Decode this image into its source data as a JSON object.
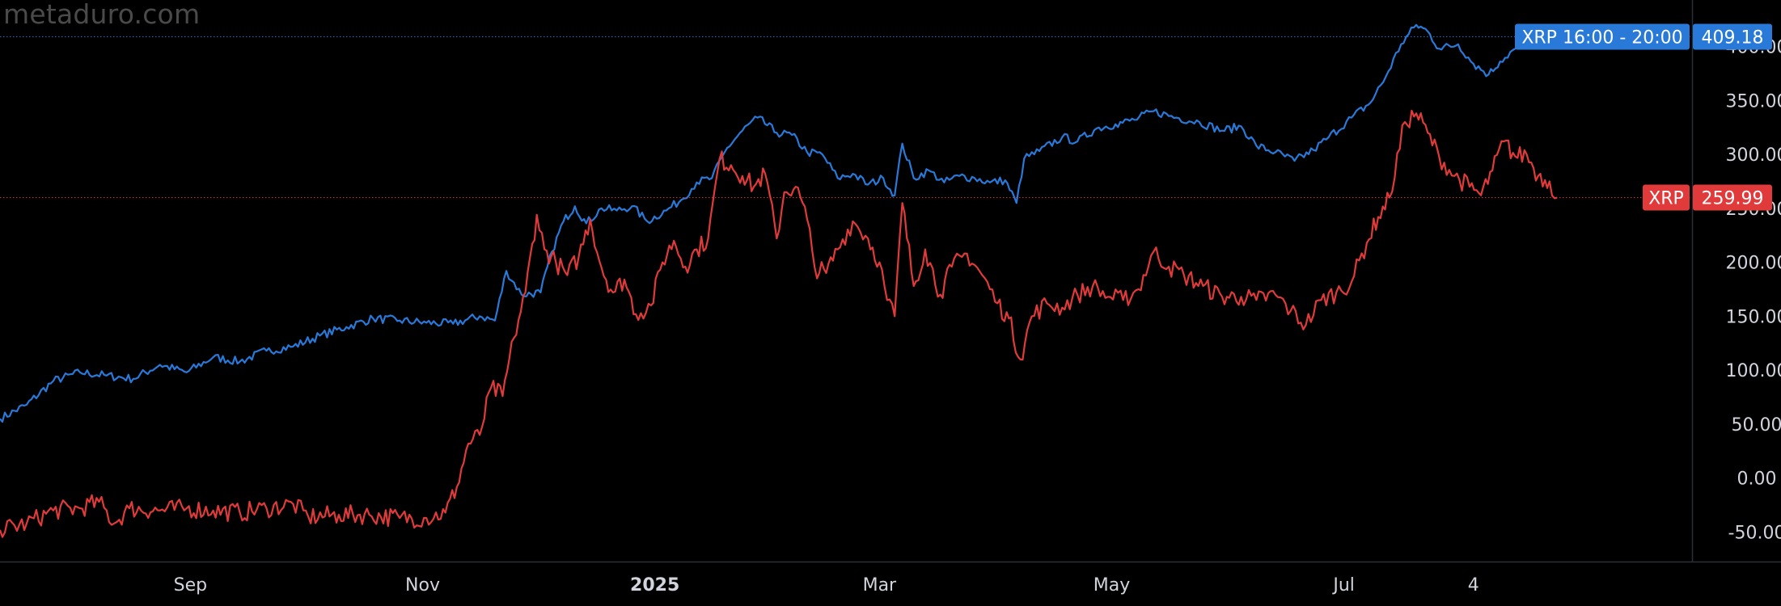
{
  "watermark": "metaduro.com",
  "chart_data": {
    "type": "line",
    "title": "",
    "xlabel": "",
    "ylabel": "",
    "ylim": [
      -70,
      460
    ],
    "x_range": [
      "2024-07-13",
      "2025-09-30"
    ],
    "y_ticks": [
      "-50.00",
      "0.00",
      "50.00",
      "100.00",
      "150.00",
      "200.00",
      "250.00",
      "300.00",
      "350.00",
      "400.00"
    ],
    "x_ticks": [
      {
        "label": "Sep",
        "date": "2024-09-01",
        "bold": false
      },
      {
        "label": "Nov",
        "date": "2024-11-01",
        "bold": false
      },
      {
        "label": "2025",
        "date": "2025-01-01",
        "bold": true
      },
      {
        "label": "Mar",
        "date": "2025-03-01",
        "bold": false
      },
      {
        "label": "May",
        "date": "2025-05-01",
        "bold": false
      },
      {
        "label": "Jul",
        "date": "2025-07-01",
        "bold": false
      },
      {
        "label": "4",
        "date": "2025-08-04",
        "bold": false
      }
    ],
    "series": [
      {
        "name": "XRP 16:00 - 20:00",
        "color": "#2979d9",
        "last_value": "409.18",
        "points": [
          [
            "2024-07-13",
            55
          ],
          [
            "2024-07-20",
            68
          ],
          [
            "2024-07-27",
            90
          ],
          [
            "2024-08-03",
            98
          ],
          [
            "2024-08-10",
            95
          ],
          [
            "2024-08-17",
            92
          ],
          [
            "2024-08-24",
            105
          ],
          [
            "2024-08-31",
            98
          ],
          [
            "2024-09-07",
            112
          ],
          [
            "2024-09-14",
            108
          ],
          [
            "2024-09-21",
            118
          ],
          [
            "2024-09-28",
            122
          ],
          [
            "2024-10-05",
            132
          ],
          [
            "2024-10-12",
            140
          ],
          [
            "2024-10-19",
            148
          ],
          [
            "2024-10-26",
            146
          ],
          [
            "2024-11-02",
            144
          ],
          [
            "2024-11-09",
            143
          ],
          [
            "2024-11-16",
            150
          ],
          [
            "2024-11-20",
            146
          ],
          [
            "2024-11-23",
            192
          ],
          [
            "2024-11-27",
            170
          ],
          [
            "2024-12-02",
            172
          ],
          [
            "2024-12-05",
            210
          ],
          [
            "2024-12-08",
            238
          ],
          [
            "2024-12-11",
            252
          ],
          [
            "2024-12-14",
            236
          ],
          [
            "2024-12-18",
            250
          ],
          [
            "2024-12-22",
            248
          ],
          [
            "2024-12-26",
            252
          ],
          [
            "2024-12-30",
            238
          ],
          [
            "2025-01-04",
            248
          ],
          [
            "2025-01-08",
            258
          ],
          [
            "2025-01-12",
            274
          ],
          [
            "2025-01-16",
            278
          ],
          [
            "2025-01-20",
            306
          ],
          [
            "2025-01-24",
            322
          ],
          [
            "2025-01-28",
            334
          ],
          [
            "2025-02-02",
            320
          ],
          [
            "2025-02-06",
            318
          ],
          [
            "2025-02-10",
            302
          ],
          [
            "2025-02-14",
            300
          ],
          [
            "2025-02-18",
            278
          ],
          [
            "2025-02-22",
            282
          ],
          [
            "2025-02-26",
            272
          ],
          [
            "2025-03-02",
            278
          ],
          [
            "2025-03-05",
            262
          ],
          [
            "2025-03-07",
            310
          ],
          [
            "2025-03-10",
            278
          ],
          [
            "2025-03-14",
            285
          ],
          [
            "2025-03-18",
            274
          ],
          [
            "2025-03-22",
            280
          ],
          [
            "2025-03-26",
            278
          ],
          [
            "2025-03-30",
            274
          ],
          [
            "2025-04-03",
            276
          ],
          [
            "2025-04-06",
            255
          ],
          [
            "2025-04-08",
            296
          ],
          [
            "2025-04-12",
            303
          ],
          [
            "2025-04-18",
            316
          ],
          [
            "2025-04-22",
            312
          ],
          [
            "2025-04-27",
            324
          ],
          [
            "2025-05-02",
            328
          ],
          [
            "2025-05-07",
            332
          ],
          [
            "2025-05-12",
            340
          ],
          [
            "2025-05-18",
            334
          ],
          [
            "2025-05-24",
            330
          ],
          [
            "2025-05-30",
            322
          ],
          [
            "2025-06-04",
            326
          ],
          [
            "2025-06-08",
            308
          ],
          [
            "2025-06-13",
            302
          ],
          [
            "2025-06-18",
            294
          ],
          [
            "2025-06-23",
            304
          ],
          [
            "2025-06-27",
            316
          ],
          [
            "2025-07-03",
            334
          ],
          [
            "2025-07-08",
            348
          ],
          [
            "2025-07-12",
            372
          ],
          [
            "2025-07-16",
            402
          ],
          [
            "2025-07-20",
            420
          ],
          [
            "2025-07-23",
            414
          ],
          [
            "2025-07-26",
            398
          ],
          [
            "2025-07-31",
            402
          ],
          [
            "2025-08-04",
            384
          ],
          [
            "2025-08-08",
            374
          ],
          [
            "2025-08-11",
            386
          ],
          [
            "2025-08-15",
            398
          ],
          [
            "2025-08-19",
            402
          ],
          [
            "2025-08-22",
            398
          ],
          [
            "2025-08-26",
            409
          ]
        ]
      },
      {
        "name": "XRP",
        "color": "#e03a3a",
        "last_value": "259.99",
        "points": [
          [
            "2024-07-13",
            -48
          ],
          [
            "2024-07-20",
            -42
          ],
          [
            "2024-07-27",
            -30
          ],
          [
            "2024-08-03",
            -28
          ],
          [
            "2024-08-08",
            -22
          ],
          [
            "2024-08-12",
            -42
          ],
          [
            "2024-08-16",
            -28
          ],
          [
            "2024-08-24",
            -30
          ],
          [
            "2024-08-31",
            -28
          ],
          [
            "2024-09-07",
            -30
          ],
          [
            "2024-09-14",
            -32
          ],
          [
            "2024-09-21",
            -28
          ],
          [
            "2024-09-28",
            -24
          ],
          [
            "2024-10-02",
            -36
          ],
          [
            "2024-10-10",
            -34
          ],
          [
            "2024-10-18",
            -34
          ],
          [
            "2024-10-26",
            -37
          ],
          [
            "2024-11-02",
            -37
          ],
          [
            "2024-11-07",
            -32
          ],
          [
            "2024-11-10",
            -8
          ],
          [
            "2024-11-13",
            32
          ],
          [
            "2024-11-16",
            40
          ],
          [
            "2024-11-19",
            84
          ],
          [
            "2024-11-22",
            76
          ],
          [
            "2024-11-25",
            130
          ],
          [
            "2024-11-28",
            172
          ],
          [
            "2024-12-01",
            244
          ],
          [
            "2024-12-03",
            212
          ],
          [
            "2024-12-06",
            200
          ],
          [
            "2024-12-09",
            188
          ],
          [
            "2024-12-12",
            205
          ],
          [
            "2024-12-15",
            240
          ],
          [
            "2024-12-18",
            195
          ],
          [
            "2024-12-21",
            172
          ],
          [
            "2024-12-24",
            184
          ],
          [
            "2024-12-27",
            152
          ],
          [
            "2024-12-31",
            160
          ],
          [
            "2025-01-03",
            200
          ],
          [
            "2025-01-06",
            220
          ],
          [
            "2025-01-09",
            196
          ],
          [
            "2025-01-12",
            212
          ],
          [
            "2025-01-15",
            222
          ],
          [
            "2025-01-18",
            296
          ],
          [
            "2025-01-21",
            290
          ],
          [
            "2025-01-24",
            280
          ],
          [
            "2025-01-27",
            270
          ],
          [
            "2025-01-30",
            282
          ],
          [
            "2025-02-02",
            222
          ],
          [
            "2025-02-04",
            265
          ],
          [
            "2025-02-07",
            270
          ],
          [
            "2025-02-10",
            240
          ],
          [
            "2025-02-12",
            195
          ],
          [
            "2025-02-15",
            190
          ],
          [
            "2025-02-18",
            212
          ],
          [
            "2025-02-22",
            238
          ],
          [
            "2025-02-26",
            222
          ],
          [
            "2025-03-01",
            200
          ],
          [
            "2025-03-03",
            165
          ],
          [
            "2025-03-05",
            150
          ],
          [
            "2025-03-07",
            255
          ],
          [
            "2025-03-10",
            178
          ],
          [
            "2025-03-13",
            212
          ],
          [
            "2025-03-17",
            170
          ],
          [
            "2025-03-20",
            196
          ],
          [
            "2025-03-24",
            208
          ],
          [
            "2025-03-28",
            188
          ],
          [
            "2025-04-01",
            162
          ],
          [
            "2025-04-04",
            148
          ],
          [
            "2025-04-07",
            110
          ],
          [
            "2025-04-10",
            150
          ],
          [
            "2025-04-14",
            162
          ],
          [
            "2025-04-18",
            158
          ],
          [
            "2025-04-22",
            170
          ],
          [
            "2025-04-26",
            178
          ],
          [
            "2025-04-30",
            168
          ],
          [
            "2025-05-04",
            165
          ],
          [
            "2025-05-08",
            175
          ],
          [
            "2025-05-12",
            210
          ],
          [
            "2025-05-16",
            196
          ],
          [
            "2025-05-20",
            188
          ],
          [
            "2025-05-25",
            178
          ],
          [
            "2025-05-30",
            168
          ],
          [
            "2025-06-04",
            168
          ],
          [
            "2025-06-08",
            165
          ],
          [
            "2025-06-13",
            170
          ],
          [
            "2025-06-17",
            155
          ],
          [
            "2025-06-21",
            142
          ],
          [
            "2025-06-25",
            165
          ],
          [
            "2025-06-29",
            172
          ],
          [
            "2025-07-03",
            182
          ],
          [
            "2025-07-07",
            218
          ],
          [
            "2025-07-10",
            242
          ],
          [
            "2025-07-13",
            260
          ],
          [
            "2025-07-17",
            330
          ],
          [
            "2025-07-20",
            338
          ],
          [
            "2025-07-23",
            320
          ],
          [
            "2025-07-26",
            298
          ],
          [
            "2025-07-30",
            280
          ],
          [
            "2025-08-03",
            270
          ],
          [
            "2025-08-06",
            262
          ],
          [
            "2025-08-09",
            285
          ],
          [
            "2025-08-12",
            312
          ],
          [
            "2025-08-15",
            298
          ],
          [
            "2025-08-18",
            300
          ],
          [
            "2025-08-21",
            280
          ],
          [
            "2025-08-24",
            275
          ],
          [
            "2025-08-26",
            260
          ]
        ]
      }
    ],
    "grid": false
  }
}
